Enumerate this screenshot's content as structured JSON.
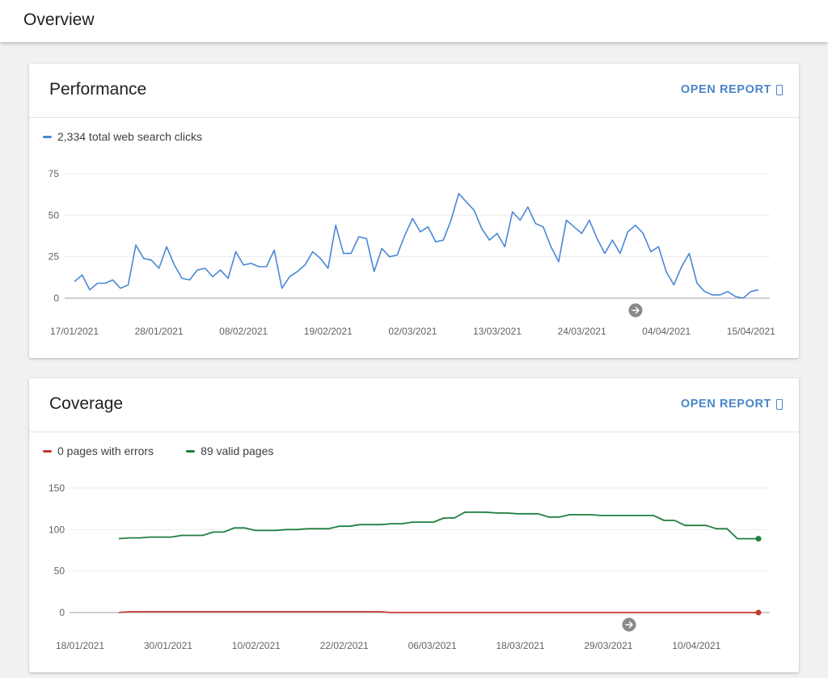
{
  "header": {
    "title": "Overview"
  },
  "performance": {
    "title": "Performance",
    "open_report": "OPEN REPORT",
    "legend": "2,334 total web search clicks",
    "color": "#4a86d6",
    "chart_data": {
      "type": "line",
      "ylim": [
        0,
        75
      ],
      "y_ticks": [
        0,
        25,
        50,
        75
      ],
      "x_tick_labels": [
        "17/01/2021",
        "28/01/2021",
        "08/02/2021",
        "19/02/2021",
        "02/03/2021",
        "13/03/2021",
        "24/03/2021",
        "04/04/2021",
        "15/04/2021"
      ],
      "x_start": "17/01/2021",
      "x_end": "15/04/2021",
      "annotation": "annotation-arrow",
      "series": [
        {
          "name": "2,334 total web search clicks",
          "values": [
            10,
            14,
            5,
            9,
            9,
            11,
            6,
            8,
            32,
            24,
            23,
            18,
            31,
            20,
            12,
            11,
            17,
            18,
            13,
            17,
            12,
            28,
            20,
            21,
            19,
            19,
            29,
            6,
            13,
            16,
            20,
            28,
            24,
            18,
            44,
            27,
            27,
            37,
            36,
            16,
            30,
            25,
            26,
            38,
            48,
            40,
            43,
            34,
            35,
            47,
            63,
            58,
            53,
            42,
            35,
            39,
            31,
            52,
            47,
            55,
            45,
            43,
            31,
            22,
            47,
            43,
            39,
            47,
            36,
            27,
            35,
            27,
            40,
            44,
            39,
            28,
            31,
            16,
            8,
            19,
            27,
            9,
            4,
            2,
            2,
            4,
            1,
            0,
            4,
            5
          ]
        }
      ]
    }
  },
  "coverage": {
    "title": "Coverage",
    "open_report": "OPEN REPORT",
    "legend_errors": "0 pages with errors",
    "legend_valid": "89 valid pages",
    "error_color": "#c5392c",
    "valid_color": "#1f7f3f",
    "chart_data": {
      "type": "line",
      "ylim": [
        0,
        150
      ],
      "y_ticks": [
        0,
        50,
        100,
        150
      ],
      "x_tick_labels": [
        "18/01/2021",
        "30/01/2021",
        "10/02/2021",
        "22/02/2021",
        "06/03/2021",
        "18/03/2021",
        "29/03/2021",
        "10/04/2021"
      ],
      "x_start": "18/01/2021",
      "x_end": "16/04/2021",
      "annotation": "annotation-arrow",
      "series": [
        {
          "name": "89 valid pages",
          "values": [
            89,
            90,
            90,
            91,
            91,
            91,
            93,
            93,
            93,
            97,
            97,
            102,
            102,
            99,
            99,
            99,
            100,
            100,
            101,
            101,
            101,
            104,
            104,
            106,
            106,
            106,
            107,
            107,
            109,
            109,
            109,
            114,
            114,
            121,
            121,
            121,
            120,
            120,
            119,
            119,
            119,
            115,
            115,
            118,
            118,
            118,
            117,
            117,
            117,
            117,
            117,
            117,
            111,
            111,
            105,
            105,
            105,
            101,
            101,
            89,
            89,
            89
          ]
        },
        {
          "name": "0 pages with errors",
          "values": [
            0,
            1,
            1,
            1,
            1,
            1,
            1,
            1,
            1,
            1,
            1,
            1,
            1,
            1,
            1,
            1,
            1,
            1,
            1,
            1,
            1,
            1,
            1,
            1,
            1,
            1,
            0,
            0,
            0,
            0,
            0,
            0,
            0,
            0,
            0,
            0,
            0,
            0,
            0,
            0,
            0,
            0,
            0,
            0,
            0,
            0,
            0,
            0,
            0,
            0,
            0,
            0,
            0,
            0,
            0,
            0,
            0,
            0,
            0,
            0,
            0,
            0
          ]
        }
      ]
    }
  }
}
